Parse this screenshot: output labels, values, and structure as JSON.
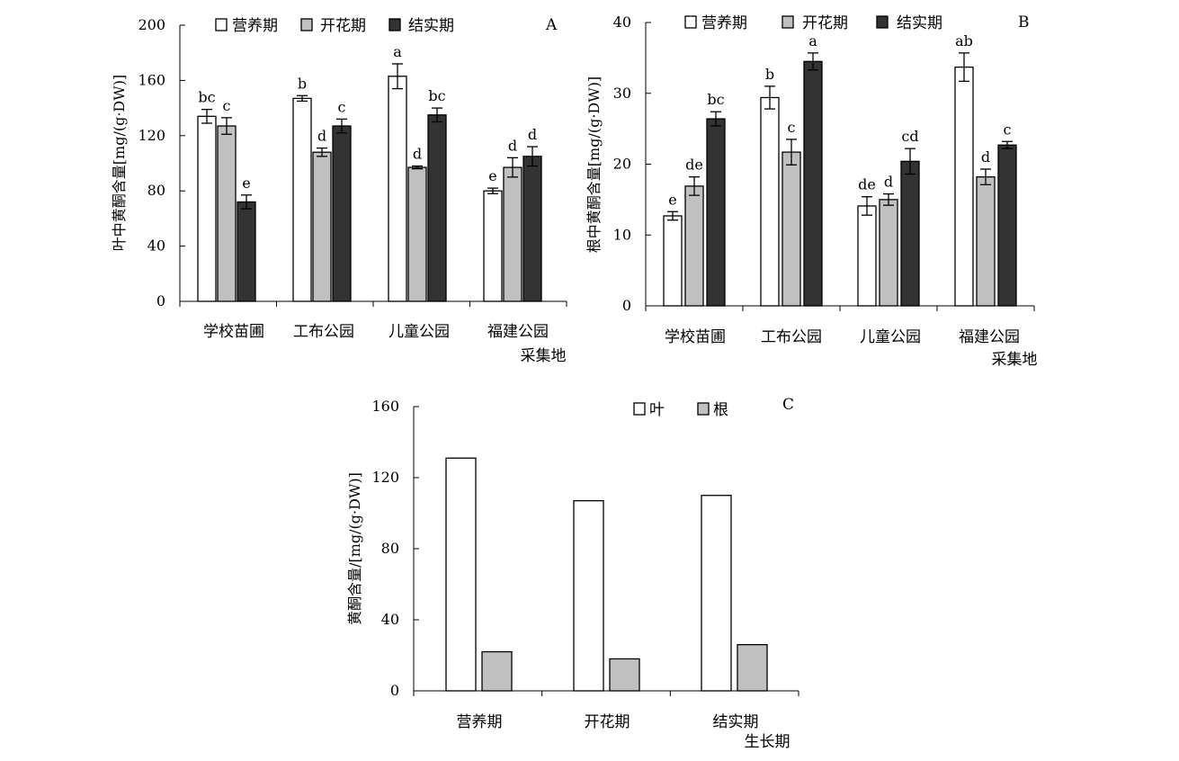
{
  "colors": {
    "vegetative": "#ffffff",
    "flowering": "#c0c0c0",
    "fruiting": "#333333",
    "leaf": "#ffffff",
    "root": "#c0c0c0"
  },
  "chart_data": [
    {
      "panel": "A",
      "type": "bar",
      "title": "",
      "ylabel": "叶中黄酮含量[mg/(g·DW)]",
      "xlabel": "",
      "ylim": [
        0,
        200
      ],
      "yticks": [
        "0",
        "40",
        "80",
        "120",
        "160",
        "200"
      ],
      "categories": [
        [
          "学校苗圃"
        ],
        [
          "工布公园"
        ],
        [
          "儿童公园"
        ],
        [
          "福建公园",
          "采集地"
        ]
      ],
      "series": [
        {
          "name": "营养期",
          "values": [
            134,
            147,
            163,
            80
          ],
          "errors": [
            5,
            2,
            9,
            2
          ],
          "letters": [
            "bc",
            "b",
            "a",
            "e"
          ]
        },
        {
          "name": "开花期",
          "values": [
            127,
            108,
            97,
            97
          ],
          "errors": [
            6,
            3,
            1,
            7
          ],
          "letters": [
            "c",
            "d",
            "d",
            "d"
          ]
        },
        {
          "name": "结实期",
          "values": [
            72,
            127,
            135,
            105
          ],
          "errors": [
            5,
            5,
            5,
            7
          ],
          "letters": [
            "e",
            "c",
            "bc",
            "d"
          ]
        }
      ],
      "legend": "top"
    },
    {
      "panel": "B",
      "type": "bar",
      "title": "",
      "ylabel": "根中黄酮含量[mg/(g·DW)]",
      "xlabel": "",
      "ylim": [
        0,
        40
      ],
      "yticks": [
        "0",
        "10",
        "20",
        "30",
        "40"
      ],
      "categories": [
        [
          "学校苗圃"
        ],
        [
          "工布公园"
        ],
        [
          "儿童公园"
        ],
        [
          "福建公园",
          "采集地"
        ]
      ],
      "series": [
        {
          "name": "营养期",
          "values": [
            12.7,
            29.4,
            14.1,
            33.7
          ],
          "errors": [
            0.6,
            1.6,
            1.3,
            2.0
          ],
          "letters": [
            "e",
            "b",
            "de",
            "ab"
          ]
        },
        {
          "name": "开花期",
          "values": [
            16.9,
            21.7,
            15.0,
            18.2
          ],
          "errors": [
            1.3,
            1.8,
            0.8,
            1.1
          ],
          "letters": [
            "de",
            "c",
            "d",
            "d"
          ]
        },
        {
          "name": "结实期",
          "values": [
            26.4,
            34.5,
            20.4,
            22.7
          ],
          "errors": [
            1.0,
            1.2,
            1.8,
            0.5
          ],
          "letters": [
            "bc",
            "a",
            "cd",
            "c"
          ]
        }
      ],
      "legend": "top"
    },
    {
      "panel": "C",
      "type": "bar",
      "title": "",
      "ylabel": "黄酮含量/[mg/(g·DW)]",
      "xlabel": "生长期",
      "ylim": [
        0,
        160
      ],
      "yticks": [
        "0",
        "40",
        "80",
        "120",
        "160"
      ],
      "categories": [
        [
          "营养期"
        ],
        [
          "开花期"
        ],
        [
          "结实期"
        ]
      ],
      "series": [
        {
          "name": "叶",
          "values": [
            131,
            107,
            110
          ]
        },
        {
          "name": "根",
          "values": [
            22,
            18,
            26
          ]
        }
      ],
      "legend": "top"
    }
  ]
}
